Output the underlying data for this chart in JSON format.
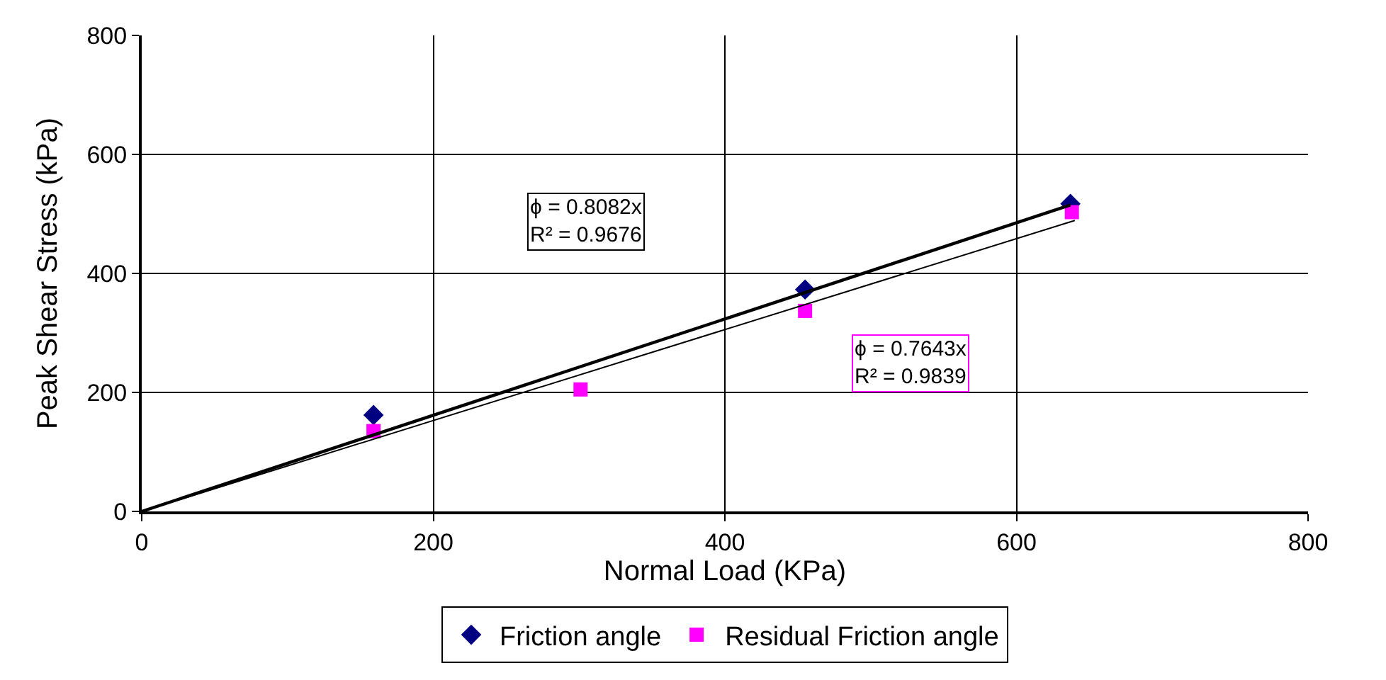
{
  "chart_data": {
    "type": "scatter",
    "xlabel": "Normal Load (KPa)",
    "ylabel": "Peak Shear Stress (kPa)",
    "xlim": [
      0,
      800
    ],
    "xticks": [
      0,
      200,
      400,
      600,
      800
    ],
    "ylim": [
      0,
      800
    ],
    "yticks": [
      0,
      200,
      400,
      600,
      800
    ],
    "grid": true,
    "legend": "bottom",
    "series": [
      {
        "name": "Friction angle",
        "color": "#000080",
        "marker": "diamond",
        "x": [
          159,
          455,
          637
        ],
        "values": [
          162,
          373,
          517
        ]
      },
      {
        "name": "Residual Friction angle",
        "color": "#ff00ff",
        "marker": "square",
        "x": [
          159,
          301,
          455,
          638
        ],
        "values": [
          135,
          205,
          337,
          503
        ]
      },
      {
        "type": "line",
        "color": "#000000",
        "marker": "none",
        "x": [
          0,
          637
        ],
        "values": [
          0,
          515
        ]
      },
      {
        "type": "line",
        "color": "#000000",
        "marker": "none",
        "x": [
          0,
          640
        ],
        "values": [
          0,
          489
        ]
      }
    ],
    "annotations": [
      "ϕ = 0.8082x\nR² = 0.9676",
      "ϕ = 0.7643x\nR² = 0.9839"
    ]
  }
}
